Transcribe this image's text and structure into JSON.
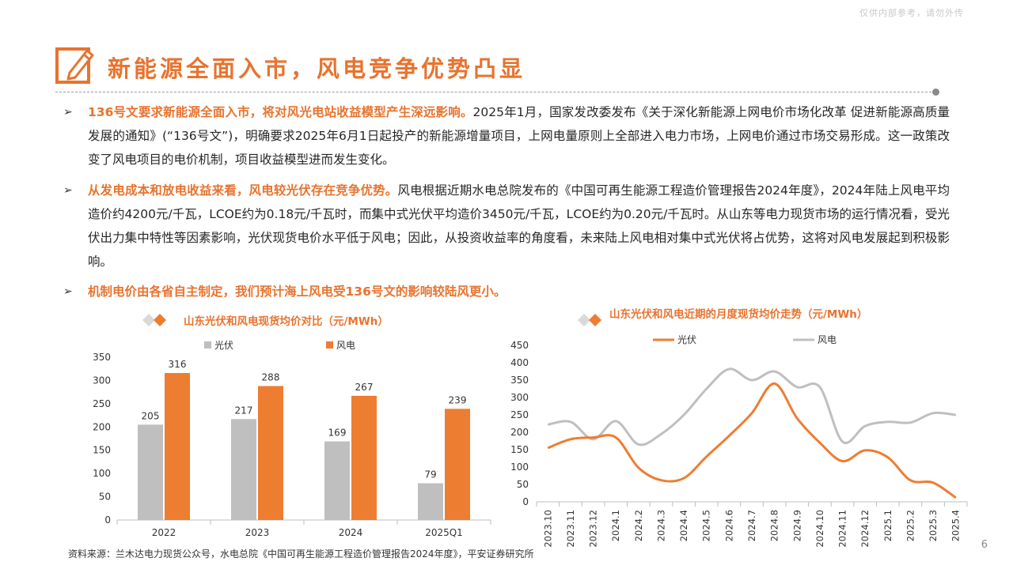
{
  "watermark": "仅供内部参考，请勿外传",
  "title": "新能源全面入市，风电竞争优势凸显",
  "bullets": [
    {
      "highlight": "136号文要求新能源全面入市，将对风光电站收益模型产生深远影响。",
      "text": "2025年1月，国家发改委发布《关于深化新能源上网电价市场化改革 促进新能源高质量发展的通知》(“136号文”)，明确要求2025年6月1日起投产的新能源增量项目，上网电量原则上全部进入电力市场，上网电价通过市场交易形成。这一政策改变了风电项目的电价机制，项目收益模型进而发生变化。"
    },
    {
      "highlight": "从发电成本和放电收益来看，风电较光伏存在竞争优势。",
      "text": "风电根据近期水电总院发布的《中国可再生能源工程造价管理报告2024年度》，2024年陆上风电平均造价约4200元/千瓦，LCOE约为0.18元/千瓦时，而集中式光伏平均造价3450元/千瓦，LCOE约为0.20元/千瓦时。从山东等电力现货市场的运行情况看，受光伏出力集中特性等因素影响，光伏现货电价水平低于风电；因此，从投资收益率的角度看，未来陆上风电相对集中式光伏将占优势，这将对风电发展起到积极影响。"
    },
    {
      "highlight": "机制电价由各省自主制定，我们预计海上风电受136号文的影响较陆风更小。",
      "text": ""
    }
  ],
  "colors": {
    "orange": "#ed7d31",
    "gray": "#bfbfbf",
    "title": "#e8732e"
  },
  "chart_data": [
    {
      "type": "bar",
      "title": "山东光伏和风电现货均价对比（元/MWh）",
      "categories": [
        "2022",
        "2023",
        "2024",
        "2025Q1"
      ],
      "series": [
        {
          "name": "光伏",
          "values": [
            205,
            217,
            169,
            79
          ],
          "color": "#bfbfbf"
        },
        {
          "name": "风电",
          "values": [
            316,
            288,
            267,
            239
          ],
          "color": "#ed7d31"
        }
      ],
      "ylim": [
        0,
        350
      ],
      "yticks": [
        0,
        50,
        100,
        150,
        200,
        250,
        300,
        350
      ],
      "legend": "top"
    },
    {
      "type": "line",
      "title": "山东光伏和风电近期的月度现货均价走势（元/MWh）",
      "x": [
        "2023.10",
        "2023.11",
        "2023.12",
        "2024.1",
        "2024.2",
        "2024.3",
        "2024.4",
        "2024.5",
        "2024.6",
        "2024.7",
        "2024.8",
        "2024.9",
        "2024.10",
        "2024.11",
        "2024.12",
        "2025.1",
        "2025.2",
        "2025.3",
        "2025.4"
      ],
      "series": [
        {
          "name": "光伏",
          "values": [
            155,
            180,
            185,
            185,
            98,
            62,
            68,
            130,
            190,
            255,
            340,
            240,
            170,
            117,
            148,
            128,
            62,
            55,
            12
          ],
          "color": "#ed7d31"
        },
        {
          "name": "风电",
          "values": [
            222,
            230,
            180,
            232,
            165,
            195,
            250,
            325,
            382,
            350,
            375,
            330,
            330,
            173,
            218,
            230,
            228,
            255,
            250
          ],
          "color": "#bfbfbf"
        }
      ],
      "ylim": [
        0,
        450
      ],
      "yticks": [
        0,
        50,
        100,
        150,
        200,
        250,
        300,
        350,
        400,
        450
      ],
      "legend": "top"
    }
  ],
  "chart1_legend": {
    "pv": "光伏",
    "wind": "风电"
  },
  "chart2_legend": {
    "pv": "光伏",
    "wind": "风电"
  },
  "source": "资料来源：兰木达电力现货公众号，水电总院《中国可再生能源工程造价管理报告2024年度》，平安证券研究所",
  "page": "6"
}
